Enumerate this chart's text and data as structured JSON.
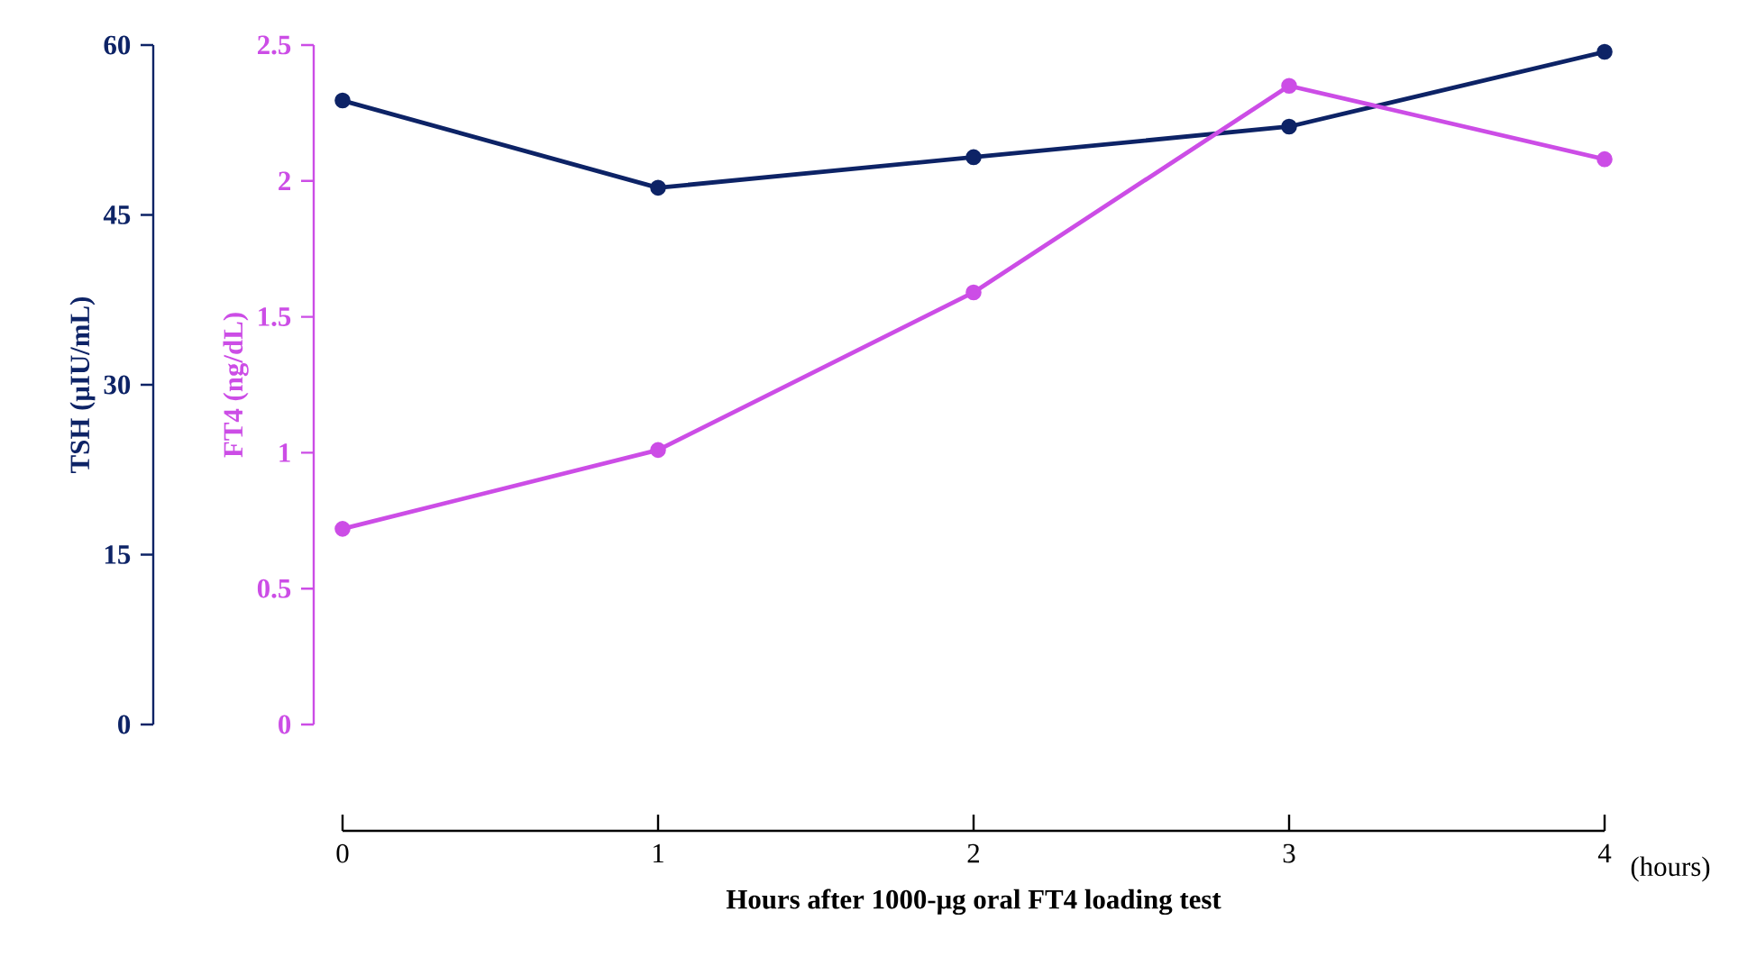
{
  "chart_data": {
    "type": "line",
    "xlabel": "Hours after 1000-μg oral FT4 loading test",
    "ylabel": "TSH (μIU/mL)",
    "y2label": "FT4 (ng/dL)",
    "annotations": [
      "(hours)"
    ],
    "x": [
      0,
      1,
      2,
      3,
      4
    ],
    "xlim": [
      0,
      4
    ],
    "xticks": [
      0,
      1,
      2,
      3,
      4
    ],
    "ylim": [
      0,
      60
    ],
    "yticks": [
      0,
      15,
      30,
      45,
      60
    ],
    "y2lim": [
      0,
      2.5
    ],
    "y2ticks": [
      0,
      0.5,
      1,
      1.5,
      2,
      2.5
    ],
    "marker": "circle",
    "grid": false,
    "series": [
      {
        "color": "#0d2366",
        "axis": "y",
        "values": [
          55.1,
          47.4,
          50.1,
          52.8,
          59.4
        ]
      },
      {
        "color": "#cc4de6",
        "axis": "y2",
        "values": [
          0.72,
          1.01,
          1.59,
          2.35,
          2.08
        ]
      }
    ]
  }
}
